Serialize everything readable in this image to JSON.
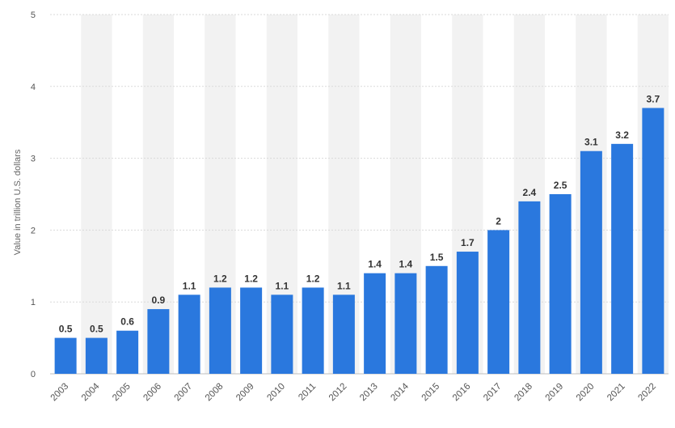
{
  "chart_data": {
    "type": "bar",
    "title": "",
    "xlabel": "",
    "ylabel": "Value in trillion U.S. dollars",
    "ylim": [
      0,
      5
    ],
    "yticks": [
      0,
      1,
      2,
      3,
      4,
      5
    ],
    "grid": true,
    "categories": [
      "2003",
      "2004",
      "2005",
      "2006",
      "2007",
      "2008",
      "2009",
      "2010",
      "2011",
      "2012",
      "2013",
      "2014",
      "2015",
      "2016",
      "2017",
      "2018",
      "2019",
      "2020",
      "2021",
      "2022"
    ],
    "values": [
      0.5,
      0.5,
      0.6,
      0.9,
      1.1,
      1.2,
      1.2,
      1.1,
      1.2,
      1.1,
      1.4,
      1.4,
      1.5,
      1.7,
      2,
      2.4,
      2.5,
      3.1,
      3.2,
      3.7
    ],
    "data_labels": [
      "0.5",
      "0.5",
      "0.6",
      "0.9",
      "1.1",
      "1.2",
      "1.2",
      "1.1",
      "1.2",
      "1.1",
      "1.4",
      "1.4",
      "1.5",
      "1.7",
      "2",
      "2.4",
      "2.5",
      "3.1",
      "3.2",
      "3.7"
    ],
    "colors": {
      "bar": "#2a78de",
      "band": "#f2f2f2",
      "grid": "#d9d9d9",
      "axis": "#bfbfbf"
    }
  }
}
